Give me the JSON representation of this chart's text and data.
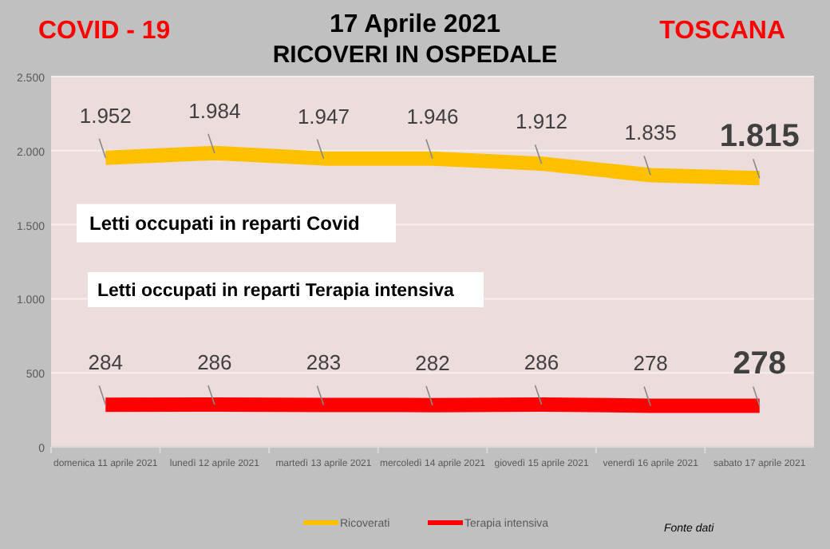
{
  "chart_data": {
    "type": "line",
    "title": "17 Aprile 2021",
    "subtitle": "RICOVERI IN OSPEDALE",
    "categories": [
      "domenica 11 aprile 2021",
      "lunedì 12 aprile 2021",
      "martedì 13 aprile 2021",
      "mercoledì 14 aprile 2021",
      "giovedì 15 aprile 2021",
      "venerdì 16 aprile 2021",
      "sabato 17 aprile 2021"
    ],
    "series": [
      {
        "name": "Ricoverati",
        "color": "#ffc000",
        "values": [
          1952,
          1984,
          1947,
          1946,
          1912,
          1835,
          1815
        ],
        "value_labels": [
          "1.952",
          "1.984",
          "1.947",
          "1.946",
          "1.912",
          "1.835",
          "1.815"
        ]
      },
      {
        "name": "Terapia intensiva",
        "color": "#ff0000",
        "values": [
          284,
          286,
          283,
          282,
          286,
          278,
          278
        ],
        "value_labels": [
          "284",
          "286",
          "283",
          "282",
          "286",
          "278",
          "278"
        ]
      }
    ],
    "ylim": [
      0,
      2500
    ],
    "yticks": [
      0,
      {
        "value": 500,
        "label": "500"
      },
      {
        "value": 1000,
        "label": "1.000"
      },
      {
        "value": 1500,
        "label": "1.500"
      },
      {
        "value": 2000,
        "label": "2.000"
      },
      {
        "value": 2500,
        "label": "2.500"
      }
    ],
    "grid": "y",
    "legend": "bottom",
    "marker": "none",
    "line_style": "solid",
    "annotations": [
      "COVID - 19",
      "TOSCANA",
      "Letti occupati in reparti Covid",
      "Letti occupati in reparti Terapia intensiva",
      "Fonte dati"
    ]
  }
}
